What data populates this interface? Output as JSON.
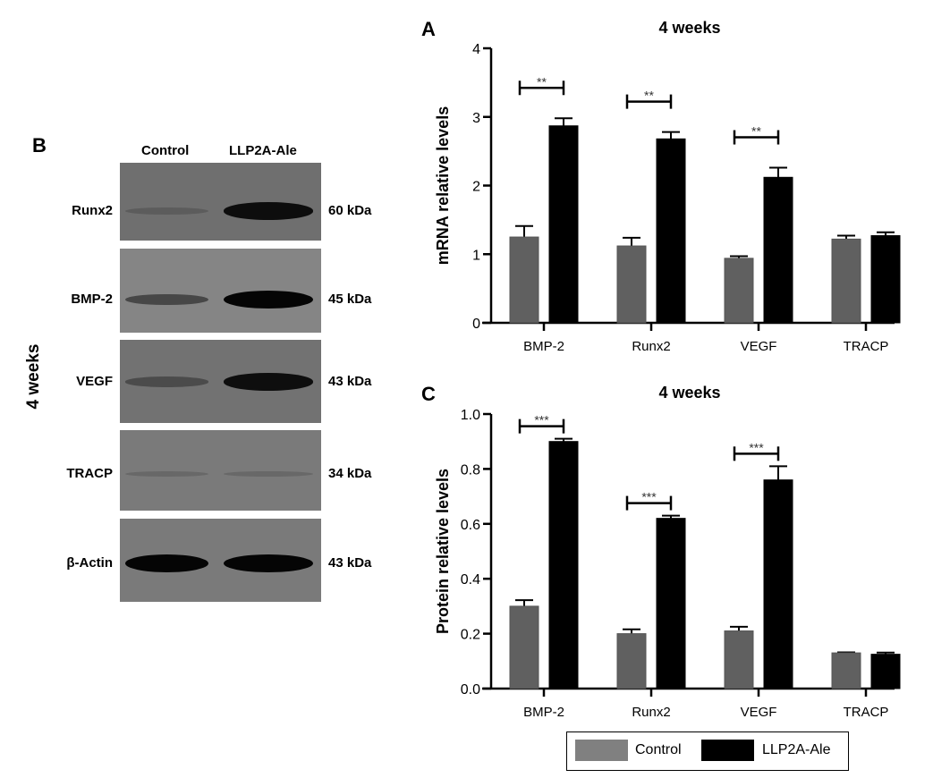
{
  "blot": {
    "letter": "B",
    "side_label": "4 weeks",
    "lanes": [
      "Control",
      "LLP2A-Ale"
    ],
    "rows": [
      {
        "protein": "Runx2",
        "size": "60 kDa",
        "intensity": [
          0.25,
          0.95
        ]
      },
      {
        "protein": "BMP-2",
        "size": "45 kDa",
        "intensity": [
          0.55,
          1.0
        ]
      },
      {
        "protein": "VEGF",
        "size": "43 kDa",
        "intensity": [
          0.45,
          0.95
        ]
      },
      {
        "protein": "TRACP",
        "size": "34 kDa",
        "intensity": [
          0.15,
          0.15
        ]
      },
      {
        "protein": "β-Actin",
        "size": "43 kDa",
        "intensity": [
          1.0,
          1.0
        ]
      }
    ]
  },
  "chart_data": [
    {
      "letter": "A",
      "type": "bar",
      "title": "4 weeks",
      "ylabel": "mRNA relative levels",
      "xlabel": "",
      "categories": [
        "BMP-2",
        "Runx2",
        "VEGF",
        "TRACP"
      ],
      "ylim": [
        0,
        4
      ],
      "yticks": [
        "0",
        "1",
        "2",
        "3",
        "4"
      ],
      "series": [
        {
          "name": "Control",
          "values": [
            1.25,
            1.12,
            0.94,
            1.22
          ],
          "errors": [
            0.16,
            0.12,
            0.03,
            0.05
          ]
        },
        {
          "name": "LLP2A-Ale",
          "values": [
            2.87,
            2.68,
            2.12,
            1.27
          ],
          "errors": [
            0.11,
            0.1,
            0.14,
            0.05
          ]
        }
      ],
      "significance": [
        "**",
        "**",
        "**",
        ""
      ],
      "grid": false
    },
    {
      "letter": "C",
      "type": "bar",
      "title": "4 weeks",
      "ylabel": "Protein relative levels",
      "xlabel": "",
      "categories": [
        "BMP-2",
        "Runx2",
        "VEGF",
        "TRACP"
      ],
      "ylim": [
        0,
        1.0
      ],
      "yticks": [
        "0.0",
        "0.2",
        "0.4",
        "0.6",
        "0.8",
        "1.0"
      ],
      "series": [
        {
          "name": "Control",
          "values": [
            0.3,
            0.2,
            0.21,
            0.13
          ],
          "errors": [
            0.022,
            0.016,
            0.015,
            0.002
          ]
        },
        {
          "name": "LLP2A-Ale",
          "values": [
            0.9,
            0.62,
            0.76,
            0.125
          ],
          "errors": [
            0.01,
            0.01,
            0.05,
            0.006
          ]
        }
      ],
      "significance": [
        "***",
        "***",
        "***",
        ""
      ],
      "grid": false
    }
  ],
  "legend": {
    "placement": "bottom-right",
    "items": [
      {
        "label": "Control",
        "color": "#808080"
      },
      {
        "label": "LLP2A-Ale",
        "color": "#000000"
      }
    ]
  },
  "colors": {
    "control_bar": "#606060",
    "treatment_bar": "#000000"
  }
}
